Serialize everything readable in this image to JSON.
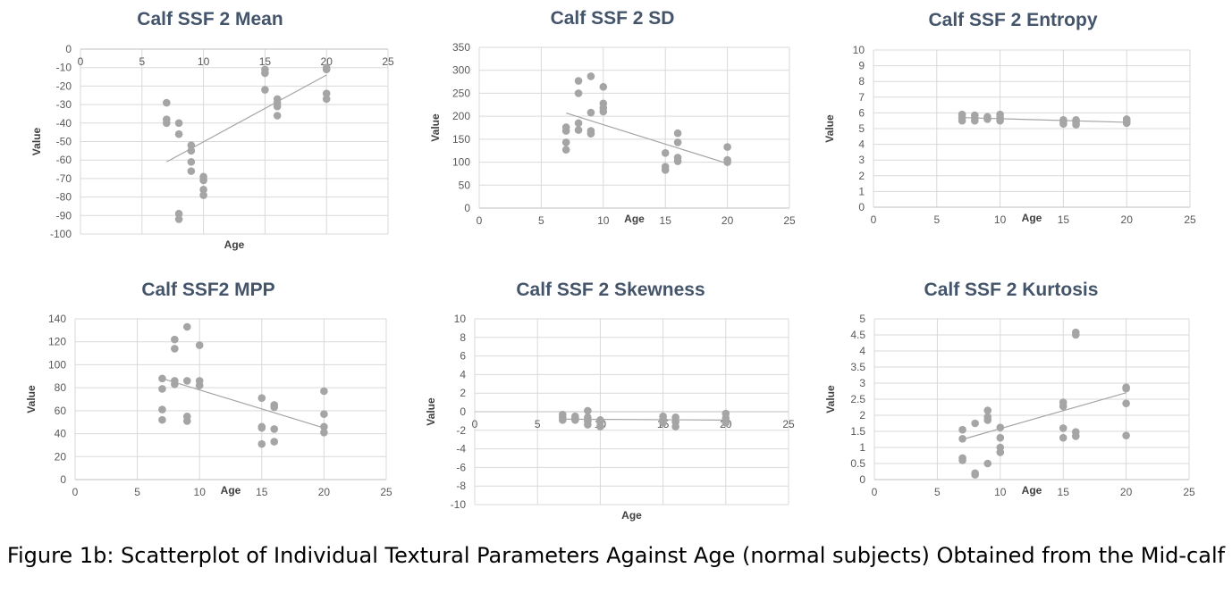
{
  "figure": {
    "caption": "Figure 1b: Scatterplot of Individual Textural Parameters Against Age (normal subjects) Obtained from the Mid-calf"
  },
  "colors": {
    "title": "#44546A",
    "axis_text": "#595959",
    "label": "#404040",
    "grid": "#D9D9D9",
    "marker": "#A5A5A5",
    "trend": "#A5A5A5"
  },
  "chart_data": [
    {
      "type": "scatter",
      "title": "Calf SSF 2 Mean",
      "xlabel": "Age",
      "ylabel": "Value",
      "xlim": [
        0,
        25
      ],
      "ylim": [
        -100,
        0
      ],
      "xticks": [
        0,
        5,
        10,
        15,
        20,
        25
      ],
      "yticks": [
        0,
        -10,
        -20,
        -30,
        -40,
        -50,
        -60,
        -70,
        -80,
        -90,
        -100
      ],
      "grid": true,
      "trendline": [
        [
          7,
          -61
        ],
        [
          20,
          -14
        ]
      ],
      "points": [
        [
          7,
          -29
        ],
        [
          7,
          -38
        ],
        [
          7,
          -40
        ],
        [
          8,
          -40
        ],
        [
          8,
          -46
        ],
        [
          8,
          -89
        ],
        [
          8,
          -92
        ],
        [
          9,
          -52
        ],
        [
          9,
          -55
        ],
        [
          9,
          -61
        ],
        [
          9,
          -66
        ],
        [
          10,
          -69
        ],
        [
          10,
          -71
        ],
        [
          10,
          -76
        ],
        [
          10,
          -79
        ],
        [
          15,
          -11
        ],
        [
          15,
          -13
        ],
        [
          15,
          -22
        ],
        [
          16,
          -27
        ],
        [
          16,
          -29
        ],
        [
          16,
          -31
        ],
        [
          16,
          -36
        ],
        [
          20,
          -10
        ],
        [
          20,
          -11
        ],
        [
          20,
          -24
        ],
        [
          20,
          -27
        ]
      ]
    },
    {
      "type": "scatter",
      "title": "Calf SSF 2 SD",
      "xlabel": "Age",
      "ylabel": "Value",
      "xlim": [
        0,
        25
      ],
      "ylim": [
        0,
        350
      ],
      "xticks": [
        0,
        5,
        10,
        15,
        20,
        25
      ],
      "yticks": [
        0,
        50,
        100,
        150,
        200,
        250,
        300,
        350
      ],
      "grid": true,
      "trendline": [
        [
          7,
          207
        ],
        [
          20,
          97
        ]
      ],
      "points": [
        [
          7,
          127
        ],
        [
          7,
          143
        ],
        [
          7,
          168
        ],
        [
          7,
          176
        ],
        [
          8,
          170
        ],
        [
          8,
          185
        ],
        [
          8,
          250
        ],
        [
          8,
          277
        ],
        [
          9,
          162
        ],
        [
          9,
          168
        ],
        [
          9,
          208
        ],
        [
          9,
          287
        ],
        [
          10,
          210
        ],
        [
          10,
          218
        ],
        [
          10,
          228
        ],
        [
          10,
          264
        ],
        [
          15,
          83
        ],
        [
          15,
          90
        ],
        [
          15,
          120
        ],
        [
          16,
          102
        ],
        [
          16,
          110
        ],
        [
          16,
          143
        ],
        [
          16,
          163
        ],
        [
          20,
          100
        ],
        [
          20,
          105
        ],
        [
          20,
          133
        ]
      ]
    },
    {
      "type": "scatter",
      "title": "Calf SSF 2 Entropy",
      "xlabel": "Age",
      "ylabel": "Value",
      "xlim": [
        0,
        25
      ],
      "ylim": [
        0,
        10
      ],
      "xticks": [
        0,
        5,
        10,
        15,
        20,
        25
      ],
      "yticks": [
        0,
        1,
        2,
        3,
        4,
        5,
        6,
        7,
        8,
        9,
        10
      ],
      "grid": true,
      "trendline": [
        [
          7,
          5.7
        ],
        [
          20,
          5.4
        ]
      ],
      "points": [
        [
          7,
          5.5
        ],
        [
          7,
          5.7
        ],
        [
          7,
          5.9
        ],
        [
          8,
          5.5
        ],
        [
          8,
          5.7
        ],
        [
          8,
          5.85
        ],
        [
          9,
          5.6
        ],
        [
          9,
          5.75
        ],
        [
          10,
          5.5
        ],
        [
          10,
          5.7
        ],
        [
          10,
          5.9
        ],
        [
          15,
          5.3
        ],
        [
          15,
          5.45
        ],
        [
          15,
          5.55
        ],
        [
          16,
          5.25
        ],
        [
          16,
          5.4
        ],
        [
          16,
          5.55
        ],
        [
          20,
          5.35
        ],
        [
          20,
          5.45
        ],
        [
          20,
          5.6
        ]
      ]
    },
    {
      "type": "scatter",
      "title": "Calf SSF2 MPP",
      "xlabel": "Age",
      "ylabel": "Value",
      "xlim": [
        0,
        25
      ],
      "ylim": [
        0,
        140
      ],
      "xticks": [
        0,
        5,
        10,
        15,
        20,
        25
      ],
      "yticks": [
        0,
        20,
        40,
        60,
        80,
        100,
        120,
        140
      ],
      "grid": true,
      "trendline": [
        [
          7,
          88
        ],
        [
          20,
          45
        ]
      ],
      "points": [
        [
          7,
          52
        ],
        [
          7,
          61
        ],
        [
          7,
          79
        ],
        [
          7,
          88
        ],
        [
          8,
          83
        ],
        [
          8,
          86
        ],
        [
          8,
          114
        ],
        [
          8,
          122
        ],
        [
          9,
          51
        ],
        [
          9,
          55
        ],
        [
          9,
          86
        ],
        [
          9,
          133
        ],
        [
          10,
          82
        ],
        [
          10,
          86
        ],
        [
          10,
          117
        ],
        [
          15,
          31
        ],
        [
          15,
          45
        ],
        [
          15,
          46
        ],
        [
          15,
          71
        ],
        [
          16,
          33
        ],
        [
          16,
          44
        ],
        [
          16,
          63
        ],
        [
          16,
          65
        ],
        [
          20,
          41
        ],
        [
          20,
          46
        ],
        [
          20,
          57
        ],
        [
          20,
          77
        ]
      ]
    },
    {
      "type": "scatter",
      "title": "Calf SSF 2 Skewness",
      "xlabel": "Age",
      "ylabel": "Value",
      "xlim": [
        0,
        25
      ],
      "ylim": [
        -10,
        10
      ],
      "xticks": [
        0,
        5,
        10,
        15,
        20,
        25
      ],
      "yticks": [
        10,
        8,
        6,
        4,
        2,
        0,
        -2,
        -4,
        -6,
        -8,
        -10
      ],
      "grid": true,
      "trendline": [
        [
          7,
          -0.8
        ],
        [
          20,
          -0.9
        ]
      ],
      "points": [
        [
          7,
          -0.3
        ],
        [
          7,
          -0.6
        ],
        [
          7,
          -0.9
        ],
        [
          8,
          -0.5
        ],
        [
          8,
          -0.7
        ],
        [
          8,
          -0.9
        ],
        [
          9,
          0.1
        ],
        [
          9,
          -0.6
        ],
        [
          9,
          -1.0
        ],
        [
          9,
          -1.4
        ],
        [
          10,
          -0.9
        ],
        [
          10,
          -1.1
        ],
        [
          10,
          -1.6
        ],
        [
          15,
          -0.5
        ],
        [
          15,
          -0.8
        ],
        [
          15,
          -1.2
        ],
        [
          16,
          -0.6
        ],
        [
          16,
          -1.1
        ],
        [
          16,
          -1.6
        ],
        [
          20,
          -0.2
        ],
        [
          20,
          -0.7
        ],
        [
          20,
          -1.2
        ]
      ]
    },
    {
      "type": "scatter",
      "title": "Calf SSF 2 Kurtosis",
      "xlabel": "Age",
      "ylabel": "Value",
      "xlim": [
        0,
        25
      ],
      "ylim": [
        0,
        5
      ],
      "xticks": [
        0,
        5,
        10,
        15,
        20,
        25
      ],
      "yticks": [
        0,
        0.5,
        1,
        1.5,
        2,
        2.5,
        3,
        3.5,
        4,
        4.5,
        5
      ],
      "grid": true,
      "trendline": [
        [
          7,
          1.25
        ],
        [
          20,
          2.7
        ]
      ],
      "points": [
        [
          7,
          0.6
        ],
        [
          7,
          0.67
        ],
        [
          7,
          1.27
        ],
        [
          7,
          1.55
        ],
        [
          8,
          0.15
        ],
        [
          8,
          0.2
        ],
        [
          8,
          1.75
        ],
        [
          9,
          0.5
        ],
        [
          9,
          1.85
        ],
        [
          9,
          1.95
        ],
        [
          9,
          2.15
        ],
        [
          10,
          0.85
        ],
        [
          10,
          1.0
        ],
        [
          10,
          1.3
        ],
        [
          10,
          1.62
        ],
        [
          15,
          1.3
        ],
        [
          15,
          1.6
        ],
        [
          15,
          2.28
        ],
        [
          15,
          2.4
        ],
        [
          16,
          1.35
        ],
        [
          16,
          1.48
        ],
        [
          16,
          4.5
        ],
        [
          16,
          4.58
        ],
        [
          20,
          1.37
        ],
        [
          20,
          2.37
        ],
        [
          20,
          2.83
        ],
        [
          20,
          2.87
        ]
      ]
    }
  ]
}
